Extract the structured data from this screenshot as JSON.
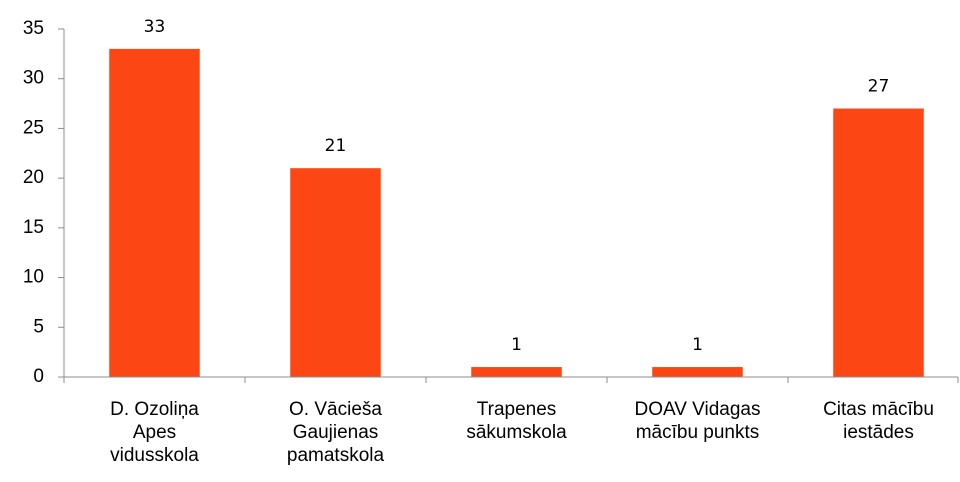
{
  "chart_data": {
    "type": "bar",
    "categories": [
      "D. Ozoliņa Apes vidusskola",
      "O. Vācieša Gaujienas pamatskola",
      "Trapenes sākumskola",
      "DOAV Vidagas mācību punkts",
      "Citas mācību iestādes"
    ],
    "values": [
      33,
      21,
      1,
      1,
      27
    ],
    "color": "#fc4614",
    "ylim": [
      0,
      35
    ],
    "yticks": [
      0,
      5,
      10,
      15,
      20,
      25,
      30,
      35
    ],
    "grid": false
  }
}
